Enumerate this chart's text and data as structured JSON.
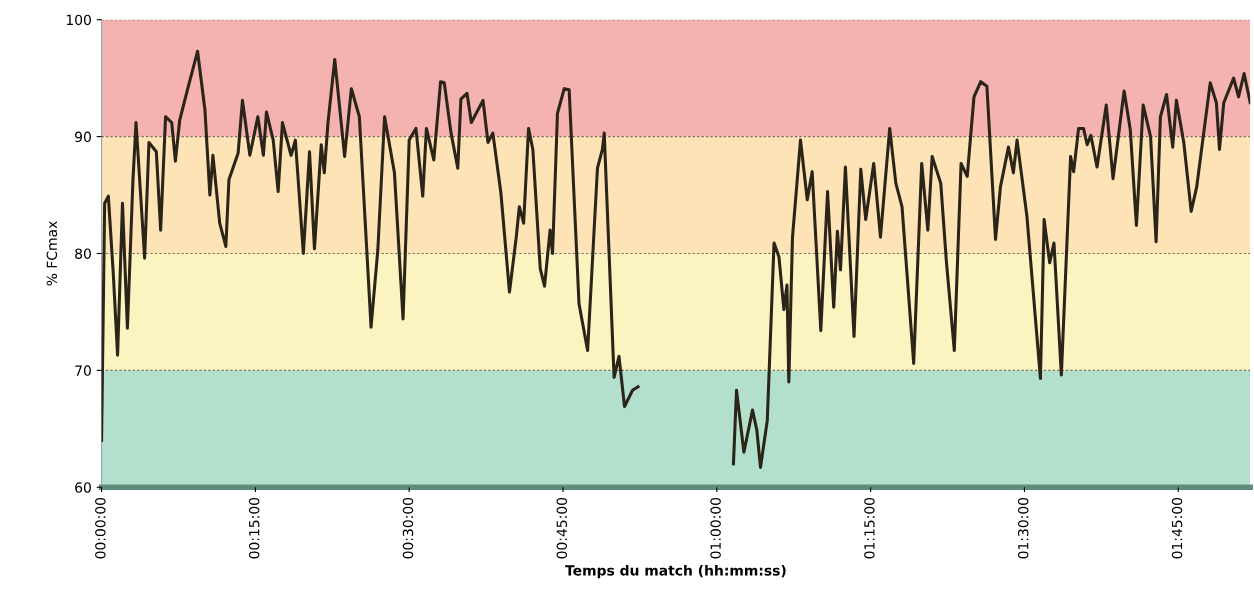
{
  "chart_data": {
    "type": "line",
    "xlabel": "Temps du match (hh:mm:ss)",
    "ylabel": "% FCmax",
    "xlim": [
      0,
      1.867
    ],
    "ylim": [
      60,
      100
    ],
    "xticks": [
      {
        "value": 0,
        "label": "00:00:00"
      },
      {
        "value": 0.25,
        "label": "00:15:00"
      },
      {
        "value": 0.5,
        "label": "00:30:00"
      },
      {
        "value": 0.75,
        "label": "00:45:00"
      },
      {
        "value": 1.0,
        "label": "01:00:00"
      },
      {
        "value": 1.25,
        "label": "01:15:00"
      },
      {
        "value": 1.5,
        "label": "01:30:00"
      },
      {
        "value": 1.75,
        "label": "01:45:00"
      }
    ],
    "yticks": [
      60,
      70,
      80,
      90,
      100
    ],
    "grid": "y",
    "line_style": "solid",
    "marker": "none",
    "bands": [
      {
        "axis": "y",
        "from": 60,
        "to": 70,
        "color": "#b2e0cc"
      },
      {
        "axis": "y",
        "from": 70,
        "to": 80,
        "color": "#fbf4c0"
      },
      {
        "axis": "y",
        "from": 80,
        "to": 90,
        "color": "#fde3b5"
      },
      {
        "axis": "y",
        "from": 90,
        "to": 100,
        "color": "#f4b3b0"
      }
    ],
    "series": [
      {
        "color": "#2b2418",
        "x": [
          0.0,
          0.005,
          0.011,
          0.019,
          0.026,
          0.034,
          0.042,
          0.051,
          0.056,
          0.07,
          0.077,
          0.089,
          0.096,
          0.104,
          0.114,
          0.12,
          0.127,
          0.141,
          0.156,
          0.168,
          0.176,
          0.181,
          0.192,
          0.202,
          0.207,
          0.222,
          0.229,
          0.241,
          0.254,
          0.263,
          0.268,
          0.279,
          0.287,
          0.294,
          0.308,
          0.315,
          0.328,
          0.338,
          0.346,
          0.357,
          0.362,
          0.368,
          0.379,
          0.395,
          0.406,
          0.419,
          0.438,
          0.449,
          0.46,
          0.476,
          0.49,
          0.5,
          0.511,
          0.522,
          0.528,
          0.54,
          0.551,
          0.557,
          0.568,
          0.579,
          0.584,
          0.594,
          0.601,
          0.62,
          0.628,
          0.636,
          0.649,
          0.663,
          0.674,
          0.679,
          0.686,
          0.694,
          0.701,
          0.713,
          0.72,
          0.729,
          0.733,
          0.741,
          0.752,
          0.76,
          0.776,
          0.79,
          0.806,
          0.814,
          0.817,
          0.833,
          0.841,
          0.85,
          0.863,
          0.872,
          0.95,
          1.027,
          1.032,
          1.044,
          1.058,
          1.065,
          1.071,
          1.082,
          1.093,
          1.101,
          1.109,
          1.114,
          1.117,
          1.123,
          1.136,
          1.147,
          1.155,
          1.169,
          1.18,
          1.19,
          1.196,
          1.201,
          1.209,
          1.223,
          1.234,
          1.242,
          1.255,
          1.266,
          1.281,
          1.291,
          1.301,
          1.32,
          1.333,
          1.343,
          1.35,
          1.364,
          1.373,
          1.386,
          1.397,
          1.407,
          1.418,
          1.429,
          1.439,
          1.453,
          1.461,
          1.474,
          1.482,
          1.488,
          1.504,
          1.526,
          1.532,
          1.541,
          1.548,
          1.56,
          1.575,
          1.58,
          1.588,
          1.596,
          1.602,
          1.608,
          1.618,
          1.633,
          1.644,
          1.662,
          1.672,
          1.682,
          1.693,
          1.705,
          1.714,
          1.721,
          1.731,
          1.741,
          1.747,
          1.759,
          1.771,
          1.78,
          1.802,
          1.812,
          1.817,
          1.824,
          1.84,
          1.848,
          1.857,
          1.867
        ],
        "values": [
          64.0,
          84.3,
          84.9,
          78.3,
          71.3,
          84.3,
          73.6,
          86.3,
          91.2,
          79.6,
          89.5,
          88.7,
          82.0,
          91.7,
          91.2,
          87.9,
          91.4,
          94.3,
          97.3,
          92.3,
          85.0,
          88.4,
          82.6,
          80.6,
          86.3,
          88.6,
          93.1,
          88.4,
          91.7,
          88.4,
          92.1,
          89.7,
          85.3,
          91.2,
          88.4,
          89.7,
          80.0,
          88.7,
          80.4,
          89.3,
          86.9,
          91.2,
          96.6,
          88.3,
          94.1,
          91.7,
          73.7,
          80.3,
          91.7,
          86.9,
          74.4,
          89.7,
          90.7,
          84.9,
          90.7,
          88.0,
          94.7,
          94.6,
          90.3,
          87.3,
          93.2,
          93.7,
          91.2,
          93.1,
          89.5,
          90.3,
          85.2,
          76.7,
          81.4,
          84.0,
          82.6,
          90.7,
          88.9,
          78.7,
          77.2,
          82.0,
          80.0,
          92.0,
          94.1,
          94.0,
          75.7,
          71.7,
          87.3,
          88.9,
          90.3,
          69.4,
          71.2,
          66.9,
          68.3,
          68.6,
          null,
          62.0,
          68.3,
          63.0,
          66.6,
          64.9,
          61.7,
          65.7,
          80.9,
          79.7,
          75.2,
          77.3,
          69.0,
          81.4,
          89.7,
          84.6,
          87.0,
          73.4,
          85.3,
          75.4,
          81.9,
          78.6,
          87.4,
          72.9,
          87.2,
          82.9,
          87.7,
          81.4,
          90.7,
          86.0,
          84.0,
          70.6,
          87.7,
          82.0,
          88.3,
          86.0,
          79.4,
          71.7,
          87.7,
          86.6,
          93.4,
          94.7,
          94.3,
          81.2,
          85.7,
          89.1,
          86.9,
          89.7,
          83.2,
          69.3,
          82.9,
          79.2,
          80.9,
          69.6,
          88.3,
          87.0,
          90.7,
          90.7,
          89.3,
          90.1,
          87.4,
          92.7,
          86.4,
          93.9,
          90.6,
          82.4,
          92.7,
          90.0,
          81.0,
          91.7,
          93.6,
          89.1,
          93.1,
          89.5,
          83.6,
          85.7,
          94.6,
          92.9,
          88.9,
          92.9,
          95.0,
          93.4,
          95.4,
          92.9
        ]
      }
    ]
  }
}
